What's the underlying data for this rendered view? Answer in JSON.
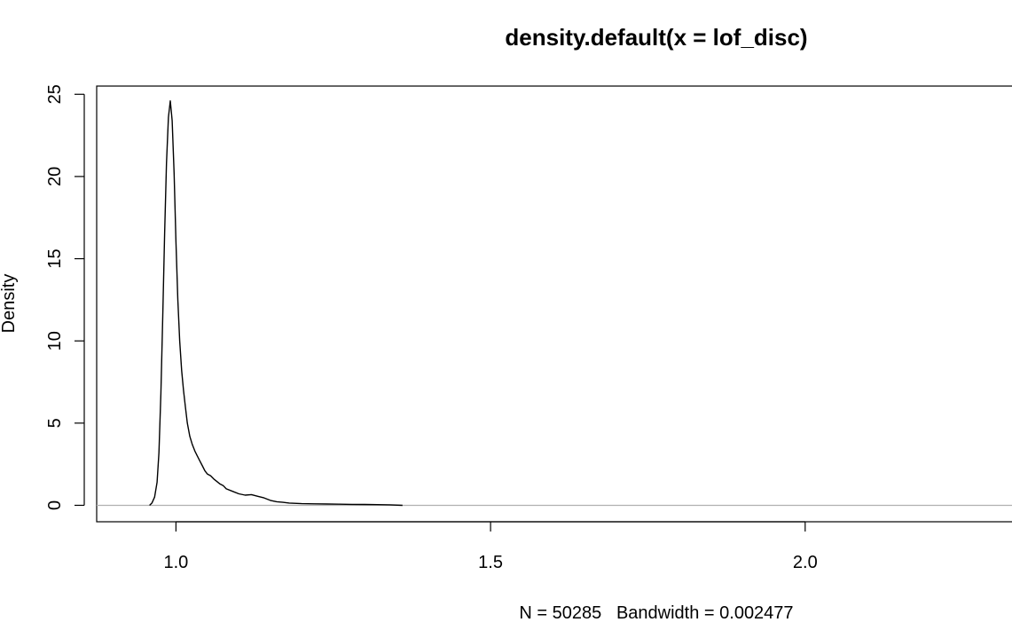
{
  "chart_data": {
    "type": "line",
    "title": "density.default(x = lof_disc)",
    "xlabel": "N = 50285   Bandwidth = 0.002477",
    "ylabel": "Density",
    "xlim": [
      0.874,
      2.34
    ],
    "ylim": [
      -1.0,
      25.5
    ],
    "x_ticks": [
      1.0,
      1.5,
      2.0
    ],
    "x_tick_labels": [
      "1.0",
      "1.5",
      "2.0"
    ],
    "y_ticks": [
      0,
      5,
      10,
      15,
      20,
      25
    ],
    "y_tick_labels": [
      "0",
      "5",
      "10",
      "15",
      "20",
      "25"
    ],
    "baseline": 0,
    "grid": false,
    "series": [
      {
        "color": "#000000",
        "x": [
          0.958,
          0.962,
          0.966,
          0.97,
          0.973,
          0.976,
          0.979,
          0.982,
          0.985,
          0.988,
          0.991,
          0.994,
          0.997,
          1.0,
          1.003,
          1.006,
          1.009,
          1.012,
          1.015,
          1.018,
          1.022,
          1.026,
          1.03,
          1.034,
          1.038,
          1.042,
          1.046,
          1.05,
          1.055,
          1.06,
          1.065,
          1.07,
          1.075,
          1.08,
          1.09,
          1.1,
          1.11,
          1.12,
          1.13,
          1.14,
          1.15,
          1.16,
          1.17,
          1.18,
          1.2,
          1.22,
          1.24,
          1.26,
          1.28,
          1.3,
          1.32,
          1.34,
          1.36
        ],
        "y": [
          0.0,
          0.15,
          0.5,
          1.4,
          3.2,
          6.8,
          11.5,
          16.5,
          20.8,
          23.6,
          24.6,
          23.4,
          20.2,
          16.0,
          12.5,
          10.0,
          8.2,
          7.0,
          6.0,
          5.0,
          4.2,
          3.7,
          3.3,
          3.0,
          2.7,
          2.4,
          2.1,
          1.9,
          1.8,
          1.6,
          1.45,
          1.3,
          1.2,
          1.0,
          0.85,
          0.7,
          0.62,
          0.65,
          0.55,
          0.45,
          0.3,
          0.22,
          0.18,
          0.14,
          0.1,
          0.09,
          0.08,
          0.07,
          0.06,
          0.05,
          0.04,
          0.03,
          0.0
        ]
      }
    ]
  }
}
